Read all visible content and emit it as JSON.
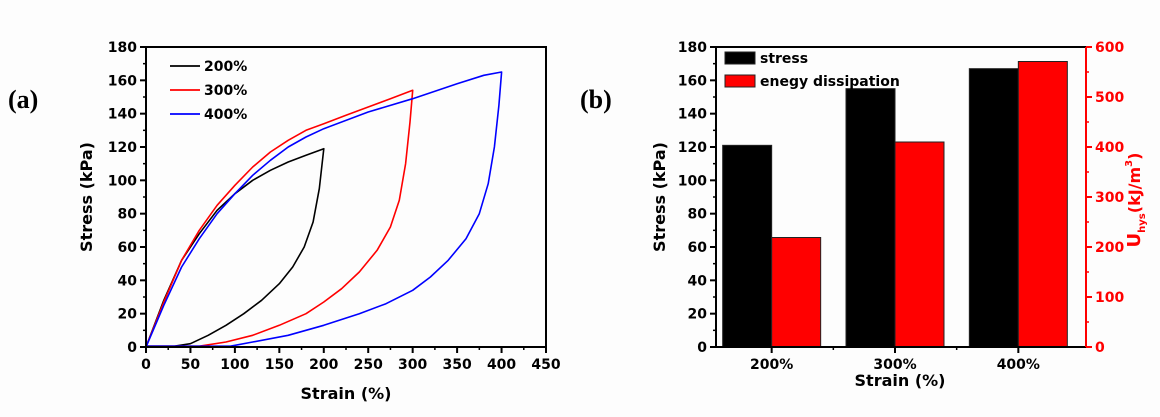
{
  "chart_data": [
    {
      "panel_label": "(a)",
      "type": "line",
      "title": "",
      "xlabel": "Strain (%)",
      "ylabel": "Stress (kPa)",
      "xlim": [
        0,
        450
      ],
      "ylim": [
        0,
        180
      ],
      "xticks": [
        "0",
        "50",
        "100",
        "150",
        "200",
        "250",
        "300",
        "350",
        "400",
        "450"
      ],
      "yticks": [
        "0",
        "20",
        "40",
        "60",
        "80",
        "100",
        "120",
        "140",
        "160",
        "180"
      ],
      "grid": false,
      "legend_position": "top-left",
      "series": [
        {
          "name": "200%",
          "color": "#000000",
          "loading": [
            [
              0,
              0
            ],
            [
              20,
              28
            ],
            [
              40,
              52
            ],
            [
              60,
              68
            ],
            [
              80,
              82
            ],
            [
              100,
              92
            ],
            [
              120,
              100
            ],
            [
              140,
              106
            ],
            [
              160,
              111
            ],
            [
              180,
              115
            ],
            [
              200,
              119
            ]
          ],
          "unloading": [
            [
              200,
              119
            ],
            [
              195,
              95
            ],
            [
              188,
              75
            ],
            [
              178,
              60
            ],
            [
              165,
              48
            ],
            [
              150,
              38
            ],
            [
              130,
              28
            ],
            [
              110,
              20
            ],
            [
              90,
              13
            ],
            [
              70,
              7
            ],
            [
              50,
              2
            ],
            [
              32,
              0.5
            ],
            [
              0,
              0.5
            ]
          ]
        },
        {
          "name": "300%",
          "color": "#ff0000",
          "loading": [
            [
              0,
              0
            ],
            [
              20,
              27
            ],
            [
              40,
              52
            ],
            [
              60,
              70
            ],
            [
              80,
              85
            ],
            [
              100,
              97
            ],
            [
              120,
              108
            ],
            [
              140,
              117
            ],
            [
              160,
              124
            ],
            [
              180,
              130
            ],
            [
              200,
              134
            ],
            [
              225,
              139
            ],
            [
              250,
              144
            ],
            [
              275,
              149
            ],
            [
              300,
              154
            ]
          ],
          "unloading": [
            [
              300,
              154
            ],
            [
              297,
              135
            ],
            [
              292,
              110
            ],
            [
              285,
              88
            ],
            [
              275,
              72
            ],
            [
              260,
              58
            ],
            [
              240,
              45
            ],
            [
              220,
              35
            ],
            [
              200,
              27
            ],
            [
              180,
              20
            ],
            [
              150,
              13
            ],
            [
              120,
              7
            ],
            [
              90,
              3
            ],
            [
              60,
              0.5
            ],
            [
              0,
              0.5
            ]
          ]
        },
        {
          "name": "400%",
          "color": "#0000ff",
          "loading": [
            [
              0,
              0
            ],
            [
              20,
              25
            ],
            [
              40,
              48
            ],
            [
              60,
              65
            ],
            [
              80,
              80
            ],
            [
              100,
              92
            ],
            [
              120,
              103
            ],
            [
              140,
              112
            ],
            [
              160,
              120
            ],
            [
              180,
              126
            ],
            [
              200,
              131
            ],
            [
              250,
              141
            ],
            [
              300,
              149
            ],
            [
              350,
              158
            ],
            [
              380,
              163
            ],
            [
              400,
              165
            ]
          ],
          "unloading": [
            [
              400,
              165
            ],
            [
              397,
              145
            ],
            [
              392,
              120
            ],
            [
              385,
              98
            ],
            [
              375,
              80
            ],
            [
              360,
              65
            ],
            [
              340,
              52
            ],
            [
              320,
              42
            ],
            [
              300,
              34
            ],
            [
              270,
              26
            ],
            [
              240,
              20
            ],
            [
              200,
              13
            ],
            [
              160,
              7
            ],
            [
              120,
              3
            ],
            [
              95,
              0.5
            ],
            [
              0,
              0.5
            ]
          ]
        }
      ]
    },
    {
      "panel_label": "(b)",
      "type": "bar",
      "title": "",
      "xlabel": "Strain (%)",
      "ylabel": "Stress (kPa)",
      "y2label_main": "U",
      "y2label_sub": "hys",
      "y2label_unit": "(kJ/m",
      "y2label_sup": "3",
      "y2label_close": ")",
      "categories": [
        "200%",
        "300%",
        "400%"
      ],
      "ylim": [
        0,
        180
      ],
      "y2lim": [
        0,
        600
      ],
      "yticks": [
        "0",
        "20",
        "40",
        "60",
        "80",
        "100",
        "120",
        "140",
        "160",
        "180"
      ],
      "y2ticks": [
        "0",
        "100",
        "200",
        "300",
        "400",
        "500",
        "600"
      ],
      "grid": false,
      "legend_position": "top-left",
      "series": [
        {
          "name": "stress",
          "axis": "left",
          "color": "#000000",
          "values": [
            121,
            155,
            167
          ]
        },
        {
          "name": "enegy dissipation",
          "axis": "right",
          "color": "#ff0000",
          "values": [
            219,
            410,
            571
          ]
        }
      ],
      "right_axis_color": "#ff0000"
    }
  ]
}
